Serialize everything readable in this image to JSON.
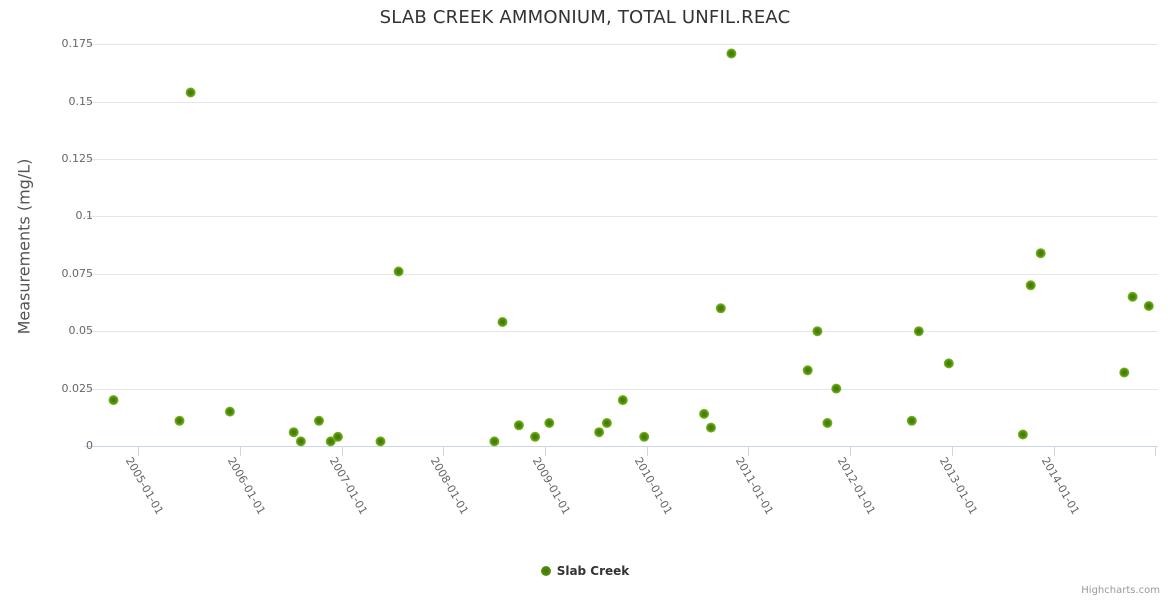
{
  "credits": {
    "label": "Highcharts.com"
  },
  "colors": {
    "marker_center": "#3d7404",
    "marker_mid": "#51890a",
    "marker_edge": "#7abd20",
    "gridline": "#e6e6e6",
    "axis_line": "#ccd6eb",
    "title_text": "#333333",
    "axis_label_text": "#666666",
    "credits_text": "#999999"
  },
  "chart_data": {
    "type": "scatter",
    "title": "SLAB CREEK AMMONIUM, TOTAL UNFIL.REAC",
    "xlabel": "",
    "ylabel": "Measurements (mg/L)",
    "ylim": [
      0,
      0.175
    ],
    "xlim": [
      "2004-06-24",
      "2015-01-11"
    ],
    "grid": "horizontal-only",
    "legend_position": "bottom-center",
    "yticks": [
      {
        "value": 0,
        "label": "0"
      },
      {
        "value": 0.025,
        "label": "0.025"
      },
      {
        "value": 0.05,
        "label": "0.05"
      },
      {
        "value": 0.075,
        "label": "0.075"
      },
      {
        "value": 0.1,
        "label": "0.1"
      },
      {
        "value": 0.125,
        "label": "0.125"
      },
      {
        "value": 0.15,
        "label": "0.15"
      },
      {
        "value": 0.175,
        "label": "0.175"
      }
    ],
    "xticks": [
      {
        "date": "2005-01-01",
        "label": "2005-01-01"
      },
      {
        "date": "2006-01-01",
        "label": "2006-01-01"
      },
      {
        "date": "2007-01-01",
        "label": "2007-01-01"
      },
      {
        "date": "2008-01-01",
        "label": "2008-01-01"
      },
      {
        "date": "2009-01-01",
        "label": "2009-01-01"
      },
      {
        "date": "2010-01-01",
        "label": "2010-01-01"
      },
      {
        "date": "2011-01-01",
        "label": "2011-01-01"
      },
      {
        "date": "2012-01-01",
        "label": "2012-01-01"
      },
      {
        "date": "2013-01-01",
        "label": "2013-01-01"
      },
      {
        "date": "2014-01-01",
        "label": "2014-01-01"
      },
      {
        "date": "2015-01-01",
        "label": ""
      }
    ],
    "series": [
      {
        "name": "Slab Creek",
        "color": "#5a9708",
        "points": [
          {
            "date": "2004-10-04",
            "value": 0.02
          },
          {
            "date": "2005-05-29",
            "value": 0.011
          },
          {
            "date": "2005-07-08",
            "value": 0.154
          },
          {
            "date": "2005-11-26",
            "value": 0.015
          },
          {
            "date": "2006-07-13",
            "value": 0.006
          },
          {
            "date": "2006-08-08",
            "value": 0.002
          },
          {
            "date": "2006-10-12",
            "value": 0.011
          },
          {
            "date": "2006-11-23",
            "value": 0.002
          },
          {
            "date": "2006-12-19",
            "value": 0.004
          },
          {
            "date": "2007-05-21",
            "value": 0.002
          },
          {
            "date": "2007-07-25",
            "value": 0.076
          },
          {
            "date": "2008-07-03",
            "value": 0.002
          },
          {
            "date": "2008-08-01",
            "value": 0.054
          },
          {
            "date": "2008-09-29",
            "value": 0.009
          },
          {
            "date": "2008-11-26",
            "value": 0.004
          },
          {
            "date": "2009-01-16",
            "value": 0.01
          },
          {
            "date": "2009-07-14",
            "value": 0.006
          },
          {
            "date": "2009-08-11",
            "value": 0.01
          },
          {
            "date": "2009-10-07",
            "value": 0.02
          },
          {
            "date": "2009-12-23",
            "value": 0.004
          },
          {
            "date": "2010-07-26",
            "value": 0.014
          },
          {
            "date": "2010-08-20",
            "value": 0.008
          },
          {
            "date": "2010-09-24",
            "value": 0.06
          },
          {
            "date": "2010-11-01",
            "value": 0.171
          },
          {
            "date": "2011-08-02",
            "value": 0.033
          },
          {
            "date": "2011-09-06",
            "value": 0.05
          },
          {
            "date": "2011-10-12",
            "value": 0.01
          },
          {
            "date": "2011-11-13",
            "value": 0.025
          },
          {
            "date": "2012-08-10",
            "value": 0.011
          },
          {
            "date": "2012-09-04",
            "value": 0.05
          },
          {
            "date": "2012-12-21",
            "value": 0.036
          },
          {
            "date": "2013-09-13",
            "value": 0.005
          },
          {
            "date": "2013-10-11",
            "value": 0.07
          },
          {
            "date": "2013-11-16",
            "value": 0.084
          },
          {
            "date": "2014-09-12",
            "value": 0.032
          },
          {
            "date": "2014-10-12",
            "value": 0.065
          },
          {
            "date": "2014-12-09",
            "value": 0.061
          }
        ]
      }
    ]
  }
}
